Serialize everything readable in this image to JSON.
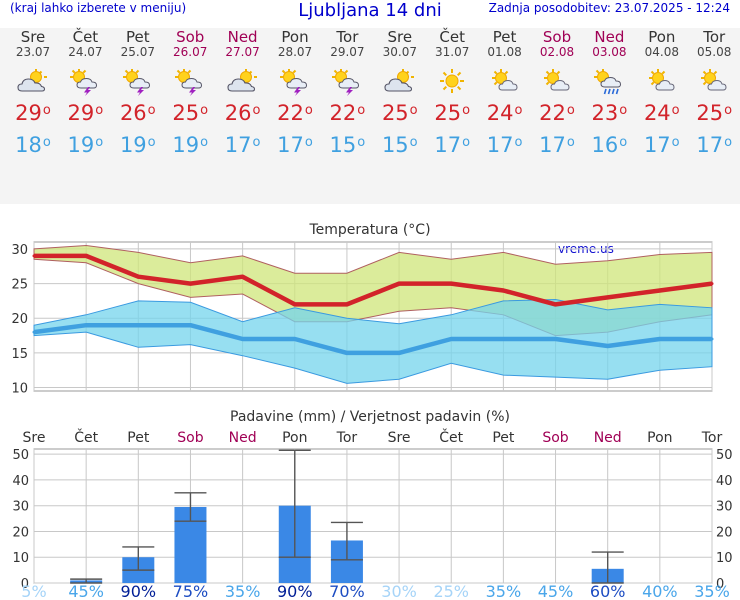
{
  "header": {
    "menu_hint": "(kraj lahko izberete v meniju)",
    "title": "Ljubljana 14 dni",
    "updated": "Zadnja posodobitev: 23.07.2025 - 12:24"
  },
  "days": [
    {
      "name": "Sre",
      "date": "23.07",
      "weekend": false,
      "icon": "partly-cloudy-icon",
      "tmax": "29",
      "tmin": "18"
    },
    {
      "name": "Čet",
      "date": "24.07",
      "weekend": false,
      "icon": "thunderstorm-icon",
      "tmax": "29",
      "tmin": "19"
    },
    {
      "name": "Pet",
      "date": "25.07",
      "weekend": false,
      "icon": "thunderstorm-icon",
      "tmax": "26",
      "tmin": "19"
    },
    {
      "name": "Sob",
      "date": "26.07",
      "weekend": true,
      "icon": "thunderstorm-icon",
      "tmax": "25",
      "tmin": "19"
    },
    {
      "name": "Ned",
      "date": "27.07",
      "weekend": true,
      "icon": "partly-cloudy-icon",
      "tmax": "26",
      "tmin": "17"
    },
    {
      "name": "Pon",
      "date": "28.07",
      "weekend": false,
      "icon": "thunderstorm-icon",
      "tmax": "22",
      "tmin": "17"
    },
    {
      "name": "Tor",
      "date": "29.07",
      "weekend": false,
      "icon": "thunderstorm-icon",
      "tmax": "22",
      "tmin": "15"
    },
    {
      "name": "Sre",
      "date": "30.07",
      "weekend": false,
      "icon": "partly-cloudy-icon",
      "tmax": "25",
      "tmin": "15"
    },
    {
      "name": "Čet",
      "date": "31.07",
      "weekend": false,
      "icon": "sun-icon",
      "tmax": "25",
      "tmin": "17"
    },
    {
      "name": "Pet",
      "date": "01.08",
      "weekend": false,
      "icon": "sun-cloud-icon",
      "tmax": "24",
      "tmin": "17"
    },
    {
      "name": "Sob",
      "date": "02.08",
      "weekend": true,
      "icon": "sun-cloud-icon",
      "tmax": "22",
      "tmin": "17"
    },
    {
      "name": "Ned",
      "date": "03.08",
      "weekend": true,
      "icon": "rain-icon",
      "tmax": "23",
      "tmin": "16"
    },
    {
      "name": "Pon",
      "date": "04.08",
      "weekend": false,
      "icon": "sun-cloud-icon",
      "tmax": "24",
      "tmin": "17"
    },
    {
      "name": "Tor",
      "date": "05.08",
      "weekend": false,
      "icon": "sun-cloud-icon",
      "tmax": "25",
      "tmin": "17"
    }
  ],
  "colors": {
    "max": "#d2232a",
    "min": "#3fa0e0",
    "weekend": "#a00055",
    "bar": "#3a88e6"
  },
  "chart_data": [
    {
      "type": "line",
      "title": "Temperatura (°C)",
      "watermark": "vreme.us",
      "ylim": [
        9.5,
        31
      ],
      "yticks": [
        10,
        15,
        20,
        25,
        30
      ],
      "series": [
        {
          "name": "max",
          "values": [
            29,
            29,
            26,
            25,
            26,
            22,
            22,
            25,
            25,
            24,
            22,
            23,
            24,
            25
          ]
        },
        {
          "name": "min",
          "values": [
            18,
            19,
            19,
            19,
            17,
            17,
            15,
            15,
            17,
            17,
            17,
            16,
            17,
            17
          ]
        },
        {
          "name": "max_high",
          "values": [
            30,
            30.5,
            29.5,
            28,
            29,
            26.5,
            26.5,
            29.5,
            28.5,
            29.5,
            27.8,
            28.3,
            29.2,
            29.5
          ]
        },
        {
          "name": "max_low",
          "values": [
            28.5,
            28,
            25,
            23,
            23.5,
            19.5,
            19.5,
            21,
            21.5,
            20.5,
            17.5,
            18,
            19.5,
            20.5
          ]
        },
        {
          "name": "min_high",
          "values": [
            19,
            20.5,
            22.5,
            22.3,
            19.5,
            21.5,
            20,
            19.2,
            20.5,
            22.5,
            22.7,
            21.2,
            22,
            21.5
          ]
        },
        {
          "name": "min_low",
          "values": [
            17.5,
            18,
            15.8,
            16.2,
            14.6,
            12.8,
            10.6,
            11.2,
            13.5,
            11.8,
            11.5,
            11.2,
            12.5,
            13
          ]
        }
      ]
    },
    {
      "type": "bar",
      "title": "Padavine (mm) / Verjetnost padavin (%)",
      "categories": [
        "Sre",
        "Čet",
        "Pet",
        "Sob",
        "Ned",
        "Pon",
        "Tor",
        "Sre",
        "Čet",
        "Pet",
        "Sob",
        "Ned",
        "Pon",
        "Tor"
      ],
      "weekend": [
        false,
        false,
        false,
        true,
        true,
        false,
        false,
        false,
        false,
        false,
        true,
        true,
        false,
        false
      ],
      "values": [
        0,
        1,
        10,
        29.5,
        0,
        30,
        16.5,
        0,
        0,
        0,
        0,
        5.5,
        0,
        0
      ],
      "err_low": [
        0,
        0,
        5,
        24,
        0,
        10,
        9,
        0,
        0,
        0,
        0,
        0,
        0,
        0
      ],
      "err_high": [
        0,
        1.5,
        14,
        35,
        0,
        51.5,
        23.5,
        0,
        0,
        0,
        0,
        12,
        0,
        0
      ],
      "probability": [
        "5%",
        "45%",
        "90%",
        "75%",
        "35%",
        "90%",
        "70%",
        "30%",
        "25%",
        "35%",
        "45%",
        "60%",
        "40%",
        "35%"
      ],
      "prob_level": [
        0,
        1,
        3,
        2,
        1,
        3,
        2,
        0,
        0,
        1,
        1,
        2,
        1,
        1
      ],
      "ylim": [
        0,
        52
      ],
      "yticks": [
        0,
        10,
        20,
        30,
        40,
        50
      ]
    }
  ]
}
